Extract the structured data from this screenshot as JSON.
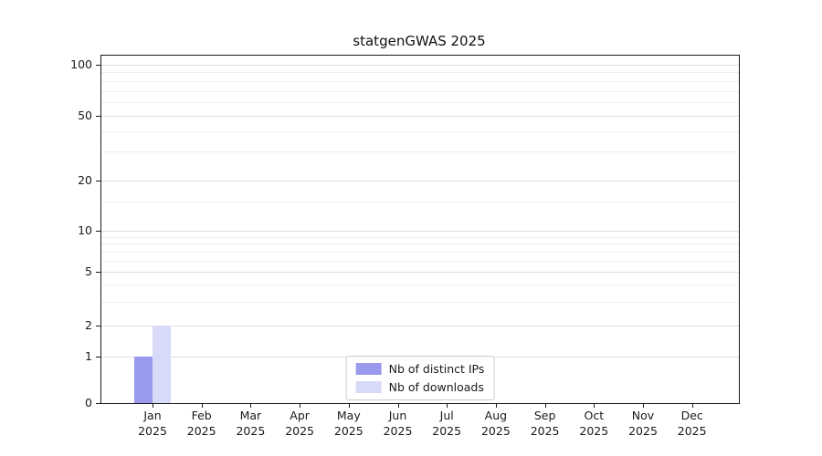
{
  "chart_data": {
    "type": "bar",
    "title": "statgenGWAS 2025",
    "categories": [
      "Jan",
      "Feb",
      "Mar",
      "Apr",
      "May",
      "Jun",
      "Jul",
      "Aug",
      "Sep",
      "Oct",
      "Nov",
      "Dec"
    ],
    "year_label": "2025",
    "series": [
      {
        "name": "Nb of distinct IPs",
        "color": "#9999ee",
        "values": [
          1,
          0,
          0,
          0,
          0,
          0,
          0,
          0,
          0,
          0,
          0,
          0
        ]
      },
      {
        "name": "Nb of downloads",
        "color": "#d9daf8",
        "values": [
          2,
          0,
          0,
          0,
          0,
          0,
          0,
          0,
          0,
          0,
          0,
          0
        ]
      }
    ],
    "y_ticks": [
      0,
      1,
      2,
      5,
      10,
      20,
      50,
      100
    ],
    "y_scale": "symlog",
    "ylim": [
      0,
      115
    ],
    "grid": true,
    "legend_position": "lower center",
    "background_color": "#ffffff",
    "grid_color": "#dedede"
  }
}
